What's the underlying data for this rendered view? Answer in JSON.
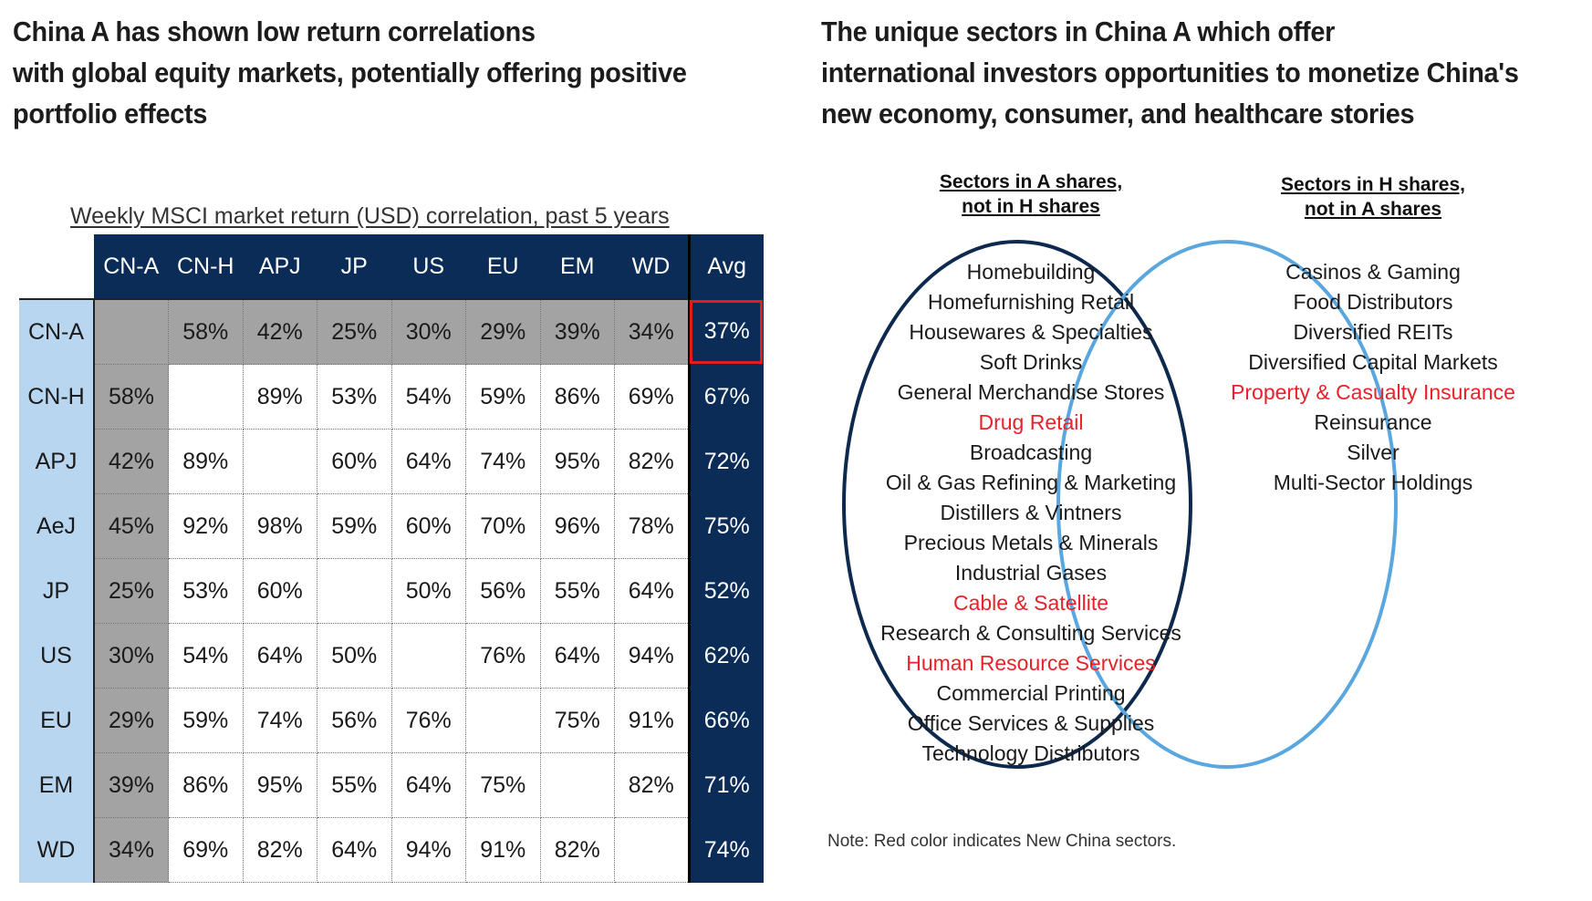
{
  "left_panel": {
    "headline": [
      "China A has shown low return correlations",
      "with global equity markets, potentially offering positive",
      "portfolio effects"
    ]
  },
  "right_panel": {
    "headline": [
      "The unique sectors in China A which offer",
      "international investors opportunities to monetize China's",
      "new economy, consumer, and healthcare stories"
    ]
  },
  "chart_data": [
    {
      "type": "table",
      "title": "Weekly MSCI market return (USD) correlation, past 5 years",
      "columns": [
        "CN-A",
        "CN-H",
        "APJ",
        "JP",
        "US",
        "EU",
        "EM",
        "WD"
      ],
      "avg_label": "Avg",
      "rows": [
        {
          "label": "CN-A",
          "values": [
            "",
            "58%",
            "42%",
            "25%",
            "30%",
            "29%",
            "39%",
            "34%"
          ],
          "avg": "37%"
        },
        {
          "label": "CN-H",
          "values": [
            "58%",
            "",
            "89%",
            "53%",
            "54%",
            "59%",
            "86%",
            "69%"
          ],
          "avg": "67%"
        },
        {
          "label": "APJ",
          "values": [
            "42%",
            "89%",
            "",
            "60%",
            "64%",
            "74%",
            "95%",
            "82%"
          ],
          "avg": "72%"
        },
        {
          "label": "AeJ",
          "values": [
            "45%",
            "92%",
            "98%",
            "59%",
            "60%",
            "70%",
            "96%",
            "78%"
          ],
          "avg": "75%"
        },
        {
          "label": "JP",
          "values": [
            "25%",
            "53%",
            "60%",
            "",
            "50%",
            "56%",
            "55%",
            "64%"
          ],
          "avg": "52%"
        },
        {
          "label": "US",
          "values": [
            "30%",
            "54%",
            "64%",
            "50%",
            "",
            "76%",
            "64%",
            "94%"
          ],
          "avg": "62%"
        },
        {
          "label": "EU",
          "values": [
            "29%",
            "59%",
            "74%",
            "56%",
            "76%",
            "",
            "75%",
            "91%"
          ],
          "avg": "66%"
        },
        {
          "label": "EM",
          "values": [
            "39%",
            "86%",
            "95%",
            "55%",
            "64%",
            "75%",
            "",
            "82%"
          ],
          "avg": "71%"
        },
        {
          "label": "WD",
          "values": [
            "34%",
            "69%",
            "82%",
            "64%",
            "94%",
            "91%",
            "82%",
            ""
          ],
          "avg": "74%"
        }
      ],
      "highlighted_cell": {
        "row": "CN-A",
        "column": "Avg"
      },
      "colors": {
        "header": "#0a2c57",
        "row_header": "#b8d6ef",
        "cn_a_shading": "#a3a3a3",
        "highlight": "#e11c1c"
      }
    }
  ],
  "venn": {
    "a_set": {
      "title": [
        "Sectors in A shares,",
        "not in H shares"
      ],
      "color": "#0d2a4e",
      "items": [
        {
          "label": "Homebuilding",
          "new_china": false
        },
        {
          "label": "Homefurnishing Retail",
          "new_china": false
        },
        {
          "label": "Housewares & Specialties",
          "new_china": false
        },
        {
          "label": "Soft Drinks",
          "new_china": false
        },
        {
          "label": "General Merchandise Stores",
          "new_china": false
        },
        {
          "label": "Drug Retail",
          "new_china": true
        },
        {
          "label": "Broadcasting",
          "new_china": false
        },
        {
          "label": "Oil & Gas Refining & Marketing",
          "new_china": false
        },
        {
          "label": "Distillers & Vintners",
          "new_china": false
        },
        {
          "label": "Precious Metals & Minerals",
          "new_china": false
        },
        {
          "label": "Industrial Gases",
          "new_china": false
        },
        {
          "label": "Cable & Satellite",
          "new_china": true
        },
        {
          "label": "Research & Consulting Services",
          "new_china": false
        },
        {
          "label": "Human Resource Services",
          "new_china": true
        },
        {
          "label": "Commercial Printing",
          "new_china": false
        },
        {
          "label": "Office Services & Supplies",
          "new_china": false
        },
        {
          "label": "Technology Distributors",
          "new_china": false
        }
      ]
    },
    "h_set": {
      "title": [
        "Sectors in H shares,",
        "not in A shares"
      ],
      "color": "#5aa7df",
      "items": [
        {
          "label": "Casinos & Gaming",
          "new_china": false
        },
        {
          "label": "Food Distributors",
          "new_china": false
        },
        {
          "label": "Diversified REITs",
          "new_china": false
        },
        {
          "label": "Diversified Capital Markets",
          "new_china": false
        },
        {
          "label": "Property & Casualty Insurance",
          "new_china": true
        },
        {
          "label": "Reinsurance",
          "new_china": false
        },
        {
          "label": "Silver",
          "new_china": false
        },
        {
          "label": "Multi-Sector Holdings",
          "new_china": false
        }
      ]
    },
    "note": "Note: Red color indicates New China sectors.",
    "new_china_color": "#e8212a"
  }
}
